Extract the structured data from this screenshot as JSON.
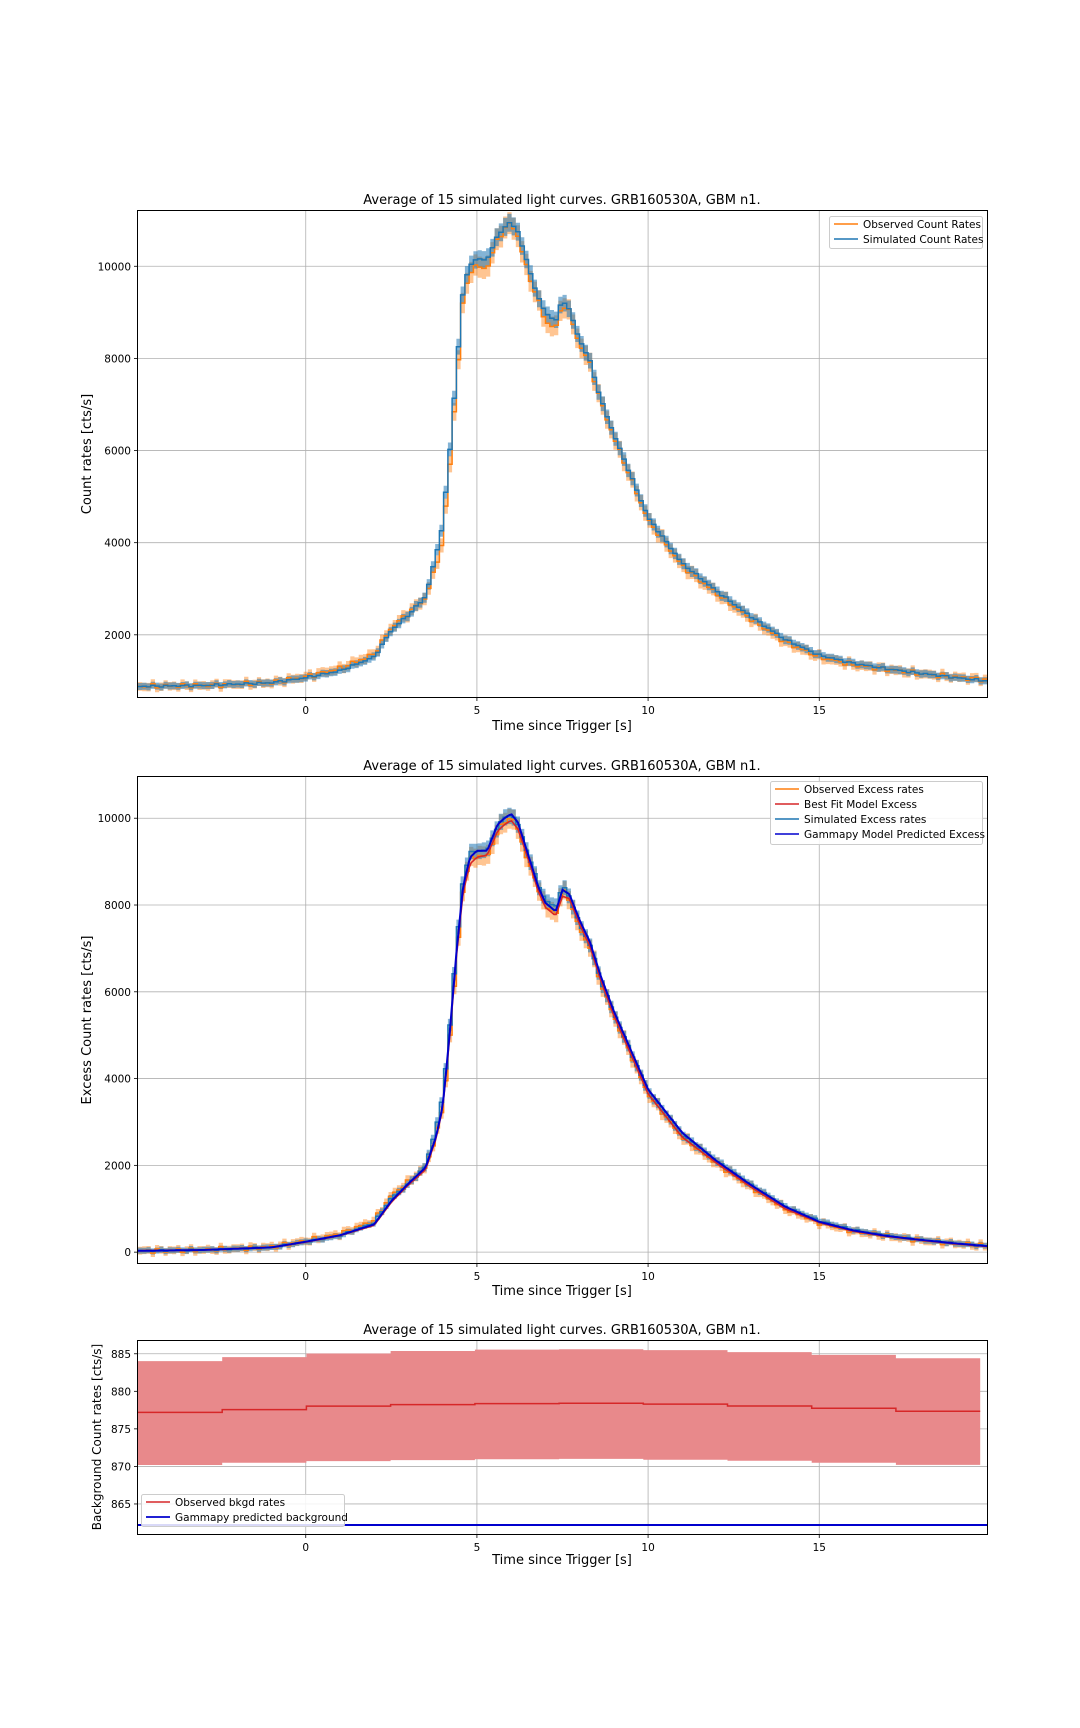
{
  "colors": {
    "observed": "#ff7f0e",
    "simulated": "#1f77b4",
    "bestfit": "#d62728",
    "gammapy": "#0000cd",
    "bkg_band": "#e8898b",
    "grid": "#b0b0b0"
  },
  "chart_data": [
    {
      "type": "line",
      "title": "Average of 15 simulated light curves. GRB160530A, GBM n1.",
      "xlabel": "Time since Trigger [s]",
      "ylabel": "Count rates [cts/s]",
      "xlim": [
        -4.9,
        19.9
      ],
      "ylim": [
        650,
        11200
      ],
      "xticks": [
        0,
        5,
        10,
        15
      ],
      "yticks": [
        2000,
        4000,
        6000,
        8000,
        10000
      ],
      "grid": true,
      "legend_position": "top-right",
      "series": [
        {
          "name": "Observed Count Rates",
          "style": "step",
          "band": true
        },
        {
          "name": "Simulated Count Rates",
          "style": "step",
          "band": true
        }
      ],
      "x": [
        -4.9,
        -3,
        -1,
        0,
        1,
        2,
        2.5,
        3,
        3.5,
        3.8,
        4,
        4.2,
        4.4,
        4.6,
        4.8,
        5,
        5.3,
        5.6,
        5.8,
        6,
        6.2,
        6.5,
        6.8,
        7,
        7.3,
        7.5,
        7.7,
        8,
        8.3,
        8.6,
        9,
        9.5,
        10,
        10.5,
        11,
        12,
        13,
        14,
        15,
        16,
        17,
        18,
        19,
        19.9
      ],
      "observed_values": [
        880,
        900,
        960,
        1090,
        1270,
        1580,
        2150,
        2470,
        2800,
        3500,
        4050,
        5600,
        7400,
        9300,
        9900,
        10000,
        9950,
        10600,
        10800,
        10950,
        10650,
        9850,
        9250,
        8800,
        8650,
        9200,
        9000,
        8300,
        7900,
        7100,
        6300,
        5400,
        4500,
        4000,
        3500,
        2900,
        2350,
        1850,
        1520,
        1350,
        1250,
        1150,
        1080,
        1020
      ],
      "simulated_values": [
        880,
        900,
        960,
        1070,
        1220,
        1520,
        2100,
        2430,
        2830,
        3700,
        4400,
        5900,
        7700,
        9500,
        10050,
        10150,
        10150,
        10650,
        10850,
        10950,
        10750,
        10000,
        9300,
        9000,
        8800,
        9300,
        9050,
        8400,
        7950,
        7150,
        6350,
        5450,
        4550,
        4050,
        3550,
        2950,
        2400,
        1900,
        1560,
        1380,
        1260,
        1160,
        1070,
        1000
      ]
    },
    {
      "type": "line",
      "title": "Average of 15 simulated light curves. GRB160530A, GBM n1.",
      "xlabel": "Time since Trigger [s]",
      "ylabel": "Excess Count rates [cts/s]",
      "xlim": [
        -4.9,
        19.9
      ],
      "ylim": [
        -250,
        10950
      ],
      "xticks": [
        0,
        5,
        10,
        15
      ],
      "yticks": [
        0,
        2000,
        4000,
        6000,
        8000,
        10000
      ],
      "grid": true,
      "legend_position": "top-right",
      "series": [
        {
          "name": "Observed Excess rates",
          "style": "step",
          "band": true
        },
        {
          "name": "Best Fit Model Excess",
          "style": "line"
        },
        {
          "name": "Simulated Excess rates",
          "style": "step",
          "band": true
        },
        {
          "name": "Gammapy Model Predicted Excess",
          "style": "line"
        }
      ],
      "x": [
        -4.9,
        -3,
        -1,
        0,
        1,
        2,
        2.5,
        3,
        3.5,
        3.8,
        4,
        4.2,
        4.4,
        4.6,
        4.8,
        5,
        5.3,
        5.6,
        5.8,
        6,
        6.2,
        6.5,
        6.8,
        7,
        7.3,
        7.5,
        7.7,
        8,
        8.3,
        8.6,
        9,
        9.5,
        10,
        10.5,
        11,
        12,
        13,
        14,
        15,
        16,
        17,
        18,
        19,
        19.9
      ],
      "observed_values": [
        30,
        50,
        120,
        260,
        420,
        730,
        1300,
        1620,
        1950,
        2700,
        3300,
        4850,
        6700,
        8450,
        9050,
        9150,
        9100,
        9700,
        9900,
        10050,
        9750,
        9000,
        8400,
        7950,
        7800,
        8350,
        8150,
        7450,
        7050,
        6250,
        5450,
        4550,
        3650,
        3150,
        2650,
        2050,
        1500,
        1000,
        680,
        480,
        370,
        270,
        200,
        140
      ],
      "simulated_values": [
        30,
        50,
        110,
        240,
        380,
        680,
        1250,
        1570,
        1980,
        2850,
        3550,
        5100,
        7000,
        8600,
        9200,
        9250,
        9250,
        9800,
        10000,
        10100,
        9850,
        9150,
        8450,
        8100,
        7950,
        8450,
        8200,
        7550,
        7100,
        6300,
        5500,
        4600,
        3700,
        3200,
        2700,
        2100,
        1550,
        1050,
        720,
        510,
        380,
        280,
        200,
        140
      ],
      "bestfit_values": [
        30,
        50,
        110,
        230,
        380,
        620,
        1150,
        1550,
        1900,
        2600,
        3300,
        4900,
        6800,
        8300,
        8950,
        9100,
        9150,
        9700,
        9850,
        9950,
        9750,
        9050,
        8300,
        7950,
        7750,
        8200,
        8150,
        7550,
        7050,
        6300,
        5450,
        4550,
        3650,
        3150,
        2650,
        2050,
        1500,
        1000,
        680,
        480,
        360,
        270,
        190,
        130
      ],
      "gammapy_values": [
        30,
        50,
        110,
        240,
        390,
        640,
        1180,
        1580,
        1950,
        2650,
        3350,
        5000,
        6900,
        8450,
        9100,
        9250,
        9250,
        9850,
        10000,
        10100,
        9900,
        9150,
        8400,
        8050,
        7850,
        8350,
        8250,
        7650,
        7150,
        6400,
        5550,
        4650,
        3750,
        3250,
        2750,
        2100,
        1550,
        1050,
        700,
        500,
        370,
        280,
        200,
        140
      ]
    },
    {
      "type": "line",
      "title": "Average of 15 simulated light curves. GRB160530A, GBM n1.",
      "xlabel": "Time since Trigger [s]",
      "ylabel": "Background Count rates [cts/s]",
      "xlim": [
        -4.9,
        19.9
      ],
      "ylim": [
        861,
        886.7
      ],
      "xticks": [
        0,
        5,
        10,
        15
      ],
      "yticks": [
        865,
        870,
        875,
        880,
        885
      ],
      "grid": true,
      "legend_position": "bottom-left",
      "series": [
        {
          "name": "Observed bkgd rates",
          "style": "step",
          "band": true
        },
        {
          "name": "Gammapy predicted background",
          "style": "line"
        }
      ],
      "x": [
        -4.9,
        -3,
        -1,
        1,
        3,
        5,
        7,
        9,
        11,
        13,
        15,
        17,
        19.9
      ],
      "observed_values": [
        877,
        877.3,
        877.6,
        878,
        878.2,
        878.3,
        878.4,
        878.4,
        878.3,
        878.1,
        877.9,
        877.6,
        877.1
      ],
      "band_low": [
        870,
        870.3,
        870.5,
        870.7,
        870.8,
        870.9,
        871,
        871,
        870.9,
        870.8,
        870.6,
        870.4,
        870
      ],
      "band_high": [
        883.7,
        884.2,
        884.6,
        885,
        885.3,
        885.5,
        885.6,
        885.6,
        885.5,
        885.3,
        885,
        884.7,
        884.1
      ],
      "gammapy_value": 862.2
    }
  ]
}
